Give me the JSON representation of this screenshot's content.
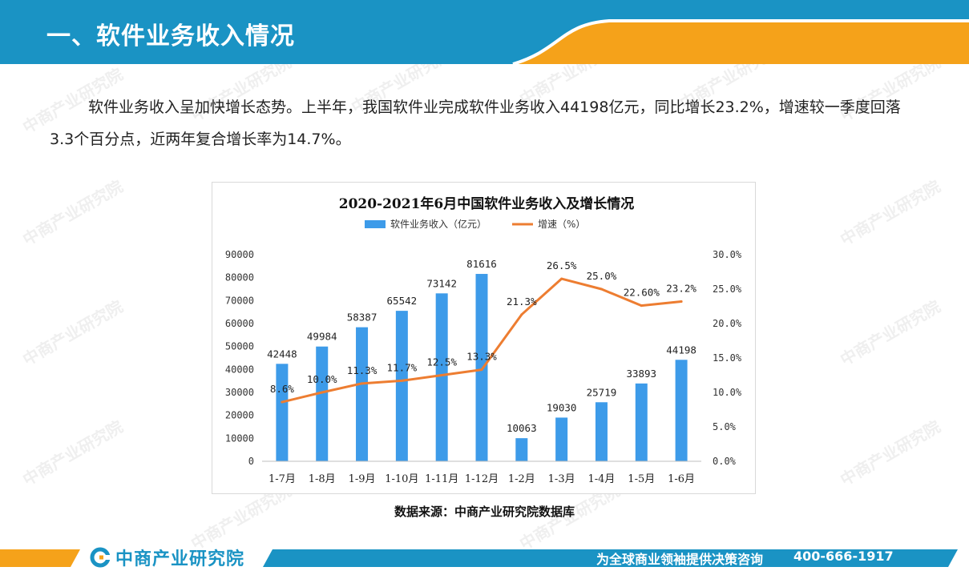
{
  "header": {
    "title": "一、软件业务收入情况",
    "bar_color": "#1a93c4",
    "accent_color": "#f5a21a"
  },
  "intro": {
    "text": "软件业务收入呈加快增长态势。上半年，我国软件业完成软件业务收入44198亿元，同比增长23.2%，增速较一季度回落3.3个百分点，近两年复合增长率为14.7%。"
  },
  "chart_data": {
    "type": "bar",
    "title": "2020-2021年6月中国软件业务收入及增长情况",
    "categories": [
      "1-7月",
      "1-8月",
      "1-9月",
      "1-10月",
      "1-11月",
      "1-12月",
      "1-2月",
      "1-3月",
      "1-4月",
      "1-5月",
      "1-6月"
    ],
    "series": [
      {
        "name": "软件业务收入（亿元）",
        "type": "bar",
        "axis": "left",
        "color": "#3d9be9",
        "values": [
          42448,
          49984,
          58387,
          65542,
          73142,
          81616,
          10063,
          19030,
          25719,
          33893,
          44198
        ],
        "labels": [
          "42448",
          "49984",
          "58387",
          "65542",
          "73142",
          "81616",
          "10063",
          "19030",
          "25719",
          "33893",
          "44198"
        ]
      },
      {
        "name": "增速（%）",
        "type": "line",
        "axis": "right",
        "color": "#ed7d31",
        "values": [
          8.6,
          10.0,
          11.3,
          11.7,
          12.5,
          13.3,
          21.3,
          26.5,
          25.0,
          22.6,
          23.2
        ],
        "labels": [
          "8.6%",
          "10.0%",
          "11.3%",
          "11.7%",
          "12.5%",
          "13.3%",
          "21.3%",
          "26.5%",
          "25.0%",
          "22.60%",
          "23.2%"
        ]
      }
    ],
    "yleft": {
      "min": 0,
      "max": 90000,
      "step": 10000,
      "ticks": [
        "0",
        "10000",
        "20000",
        "30000",
        "40000",
        "50000",
        "60000",
        "70000",
        "80000",
        "90000"
      ]
    },
    "yright": {
      "min": 0,
      "max": 30,
      "step": 5,
      "ticks": [
        "0.0%",
        "5.0%",
        "10.0%",
        "15.0%",
        "20.0%",
        "25.0%",
        "30.0%"
      ]
    },
    "legend": "top",
    "grid": false
  },
  "source": {
    "text": "数据来源：中商产业研究院数据库"
  },
  "footer": {
    "logo_text": "中商产业研究院",
    "slogan": "为全球商业领袖提供决策咨询",
    "phone": "400-666-1917"
  },
  "watermark": {
    "text": "中商产业研究院"
  }
}
